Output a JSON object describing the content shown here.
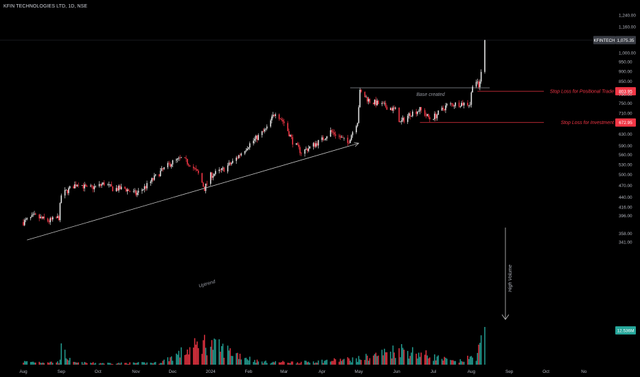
{
  "header": {
    "title": "KFIN TECHNOLOGIES LTD, 1D, NSE"
  },
  "colors": {
    "background": "#000000",
    "up": "#e6e6e6",
    "down": "#f23645",
    "volume_up": "#26a69a",
    "volume_down": "#f23645",
    "line": "#f23645",
    "axis_text": "#b2b5be"
  },
  "chart_data": {
    "type": "candlestick",
    "symbol": "KFINTECH",
    "last_price": "1,075.35",
    "volume_label": "12.536M",
    "y_axis": {
      "scale": "log",
      "ticks": [
        "1,240.00",
        "1,160.00",
        "1,075.35",
        "1,000.00",
        "950.00",
        "900.00",
        "850.00",
        "803.95",
        "790.00",
        "750.00",
        "710.00",
        "672.95",
        "630.00",
        "590.00",
        "560.00",
        "530.00",
        "500.00",
        "470.00",
        "440.00",
        "416.00",
        "396.00",
        "358.00",
        "341.00"
      ]
    },
    "x_axis": {
      "labels": [
        "Aug",
        "Sep",
        "Oct",
        "Nov",
        "Dec",
        "2024",
        "Feb",
        "Mar",
        "Apr",
        "May",
        "Jun",
        "Jul",
        "Aug",
        "Sep",
        "Oct",
        "No"
      ]
    },
    "price_path": [
      [
        "2023-08-01",
        382
      ],
      [
        "2023-08-10",
        395
      ],
      [
        "2023-08-22",
        384
      ],
      [
        "2023-08-30",
        392
      ],
      [
        "2023-09-01",
        445
      ],
      [
        "2023-09-08",
        462
      ],
      [
        "2023-09-15",
        478
      ],
      [
        "2023-09-22",
        462
      ],
      [
        "2023-10-01",
        468
      ],
      [
        "2023-10-06",
        476
      ],
      [
        "2023-10-13",
        462
      ],
      [
        "2023-10-23",
        462
      ],
      [
        "2023-11-01",
        448
      ],
      [
        "2023-11-10",
        470
      ],
      [
        "2023-11-20",
        505
      ],
      [
        "2023-11-30",
        535
      ],
      [
        "2023-12-08",
        548
      ],
      [
        "2023-12-15",
        532
      ],
      [
        "2023-12-22",
        502
      ],
      [
        "2023-12-27",
        462
      ],
      [
        "2024-01-01",
        498
      ],
      [
        "2024-01-10",
        512
      ],
      [
        "2024-01-20",
        540
      ],
      [
        "2024-01-31",
        588
      ],
      [
        "2024-02-09",
        622
      ],
      [
        "2024-02-16",
        650
      ],
      [
        "2024-02-23",
        716
      ],
      [
        "2024-03-01",
        672
      ],
      [
        "2024-03-08",
        604
      ],
      [
        "2024-03-15",
        568
      ],
      [
        "2024-03-22",
        584
      ],
      [
        "2024-04-01",
        610
      ],
      [
        "2024-04-08",
        640
      ],
      [
        "2024-04-15",
        622
      ],
      [
        "2024-04-22",
        598
      ],
      [
        "2024-04-30",
        680
      ],
      [
        "2024-05-02",
        800
      ],
      [
        "2024-05-10",
        760
      ],
      [
        "2024-05-20",
        744
      ],
      [
        "2024-05-31",
        722
      ],
      [
        "2024-06-04",
        672
      ],
      [
        "2024-06-12",
        708
      ],
      [
        "2024-06-20",
        724
      ],
      [
        "2024-06-28",
        688
      ],
      [
        "2024-07-03",
        700
      ],
      [
        "2024-07-12",
        742
      ],
      [
        "2024-07-22",
        750
      ],
      [
        "2024-07-31",
        748
      ],
      [
        "2024-08-02",
        840
      ],
      [
        "2024-08-05",
        852
      ],
      [
        "2024-08-07",
        820
      ],
      [
        "2024-08-09",
        890
      ],
      [
        "2024-08-12",
        1075.35
      ]
    ],
    "volume_path": [
      [
        "2023-08-01",
        1.2
      ],
      [
        "2023-08-30",
        1.0
      ],
      [
        "2023-09-01",
        6.0
      ],
      [
        "2023-09-10",
        0.8
      ],
      [
        "2023-10-15",
        0.6
      ],
      [
        "2023-11-20",
        0.8
      ],
      [
        "2023-12-27",
        9.0
      ],
      [
        "2024-02-10",
        1.1
      ],
      [
        "2024-03-15",
        1.0
      ],
      [
        "2024-05-02",
        2.4
      ],
      [
        "2024-06-04",
        6.4
      ],
      [
        "2024-07-20",
        1.0
      ],
      [
        "2024-08-05",
        3.5
      ],
      [
        "2024-08-12",
        12.536
      ]
    ],
    "annotations": {
      "base": {
        "text": "Base created",
        "price": 820,
        "from": "2024-04-24",
        "to": "2024-08-16"
      },
      "stop_positional": {
        "text": "Stop Loss for Positional Trade",
        "price": 803.95,
        "price_label": "803.95",
        "from": "2024-08-06"
      },
      "stop_investment": {
        "text": "Stop Loss for Investment",
        "price": 672.95,
        "price_label": "672.95",
        "from": "2024-06-20"
      },
      "uptrend": {
        "text": "Uptrend",
        "from": [
          "2023-08-04",
          345
        ],
        "to": [
          "2024-05-01",
          598
        ]
      },
      "high_volume": {
        "text": "High Volume"
      }
    }
  }
}
